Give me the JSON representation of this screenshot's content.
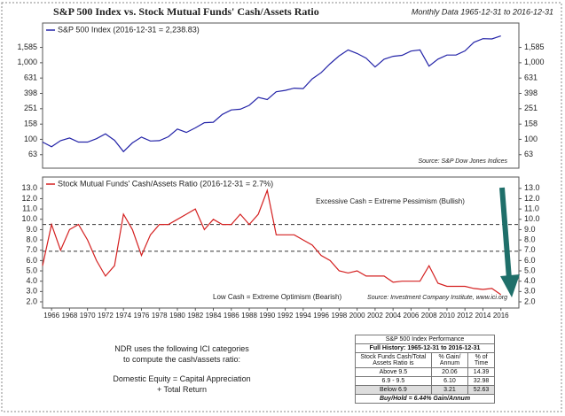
{
  "title": "S&P 500 Index vs. Stock Mutual Funds' Cash/Assets Ratio",
  "subtitle": "Monthly Data 1965-12-31 to 2016-12-31",
  "chart_data": [
    {
      "type": "line",
      "log_scale": true,
      "x": [
        1965,
        1966,
        1967,
        1968,
        1969,
        1970,
        1971,
        1972,
        1973,
        1974,
        1975,
        1976,
        1977,
        1978,
        1979,
        1980,
        1981,
        1982,
        1983,
        1984,
        1985,
        1986,
        1987,
        1988,
        1989,
        1990,
        1991,
        1992,
        1993,
        1994,
        1995,
        1996,
        1997,
        1998,
        1999,
        2000,
        2001,
        2002,
        2003,
        2004,
        2005,
        2006,
        2007,
        2008,
        2009,
        2010,
        2011,
        2012,
        2013,
        2014,
        2015,
        2016
      ],
      "series": [
        {
          "name": "S&P 500 Index (2016-12-31 = 2,238.83)",
          "color": "#2424a8",
          "values": [
            92,
            80,
            96,
            104,
            92,
            92,
            102,
            118,
            97,
            69,
            90,
            107,
            95,
            96,
            108,
            136,
            123,
            141,
            165,
            167,
            211,
            242,
            247,
            278,
            353,
            330,
            417,
            436,
            466,
            459,
            616,
            741,
            970,
            1229,
            1469,
            1320,
            1148,
            880,
            1112,
            1212,
            1248,
            1418,
            1468,
            903,
            1115,
            1258,
            1258,
            1426,
            1848,
            2059,
            2044,
            2239
          ]
        }
      ],
      "xlim": [
        1965,
        2018
      ],
      "ylim": [
        42,
        3300
      ],
      "yticks": [
        63,
        100,
        158,
        251,
        398,
        631,
        {
          "value": 1000,
          "label": "1,000"
        },
        {
          "value": 1585,
          "label": "1,585"
        }
      ],
      "annotations": [
        "Source: S&P Dow Jones Indices"
      ]
    },
    {
      "type": "line",
      "log_scale": false,
      "x": [
        1965,
        1966,
        1967,
        1968,
        1969,
        1970,
        1971,
        1972,
        1973,
        1974,
        1975,
        1976,
        1977,
        1978,
        1979,
        1980,
        1981,
        1982,
        1983,
        1984,
        1985,
        1986,
        1987,
        1988,
        1989,
        1990,
        1991,
        1992,
        1993,
        1994,
        1995,
        1996,
        1997,
        1998,
        1999,
        2000,
        2001,
        2002,
        2003,
        2004,
        2005,
        2006,
        2007,
        2008,
        2009,
        2010,
        2011,
        2012,
        2013,
        2014,
        2015,
        2016
      ],
      "series": [
        {
          "name": "Stock Mutual Funds' Cash/Assets Ratio (2016-12-31 = 2.7%)",
          "color": "#d42020",
          "values": [
            5.5,
            9.5,
            7.0,
            9.0,
            9.5,
            8.0,
            6.0,
            4.5,
            5.5,
            10.5,
            9.0,
            6.5,
            8.5,
            9.5,
            9.5,
            10.0,
            10.5,
            11.0,
            9.0,
            10.0,
            9.5,
            9.5,
            10.5,
            9.5,
            10.5,
            12.8,
            8.5,
            8.5,
            8.5,
            8.0,
            7.5,
            6.5,
            6.0,
            5.0,
            4.8,
            5.0,
            4.5,
            4.5,
            4.5,
            3.9,
            4.0,
            4.0,
            4.0,
            5.5,
            3.8,
            3.5,
            3.5,
            3.5,
            3.3,
            3.2,
            3.3,
            2.7
          ]
        }
      ],
      "xlim": [
        1965,
        2018
      ],
      "ylim": [
        1.4,
        14.1
      ],
      "xticks": [
        1966,
        1968,
        1970,
        1972,
        1974,
        1976,
        1978,
        1980,
        1982,
        1984,
        1986,
        1988,
        1990,
        1992,
        1994,
        1996,
        1998,
        2000,
        2002,
        2004,
        2006,
        2008,
        2010,
        2012,
        2014,
        2016
      ],
      "yticks": [
        {
          "value": 2,
          "label": "2.0"
        },
        {
          "value": 3,
          "label": "3.0"
        },
        {
          "value": 4,
          "label": "4.0"
        },
        {
          "value": 5,
          "label": "5.0"
        },
        {
          "value": 6,
          "label": "6.0"
        },
        {
          "value": 7,
          "label": "7.0"
        },
        {
          "value": 8,
          "label": "8.0"
        },
        {
          "value": 9,
          "label": "9.0"
        },
        {
          "value": 10,
          "label": "10.0"
        },
        {
          "value": 11,
          "label": "11.0"
        },
        {
          "value": 12,
          "label": "12.0"
        },
        {
          "value": 13,
          "label": "13.0"
        }
      ],
      "reference_lines": [
        9.5,
        6.9
      ],
      "annotations": [
        "Excessive Cash = Extreme Pessimism (Bullish)",
        "Low Cash = Extreme Optimism (Bearish)",
        "Source: Investment Company Institute, www.ici.org"
      ]
    }
  ],
  "notes": [
    "NDR uses the following ICI categories",
    "to compute the cash/assets ratio:",
    "Domestic Equity = Capital Appreciation",
    "+ Total Return"
  ],
  "table": {
    "title": "S&P 500 Index Performance",
    "subtitle": "Full History:  1965-12-31 to 2016-12-31",
    "header": [
      "Stock Funds Cash/Total Assets Ratio is",
      "% Gain/ Annum",
      "% of Time"
    ],
    "rows": [
      [
        "Above 9.5",
        "20.06",
        "14.39"
      ],
      [
        "6.9 - 9.5",
        "6.10",
        "32.98"
      ],
      [
        "Below 6.9",
        "3.21",
        "52.63"
      ]
    ],
    "footer": "Buy/Hold = 6.44% Gain/Annum"
  }
}
